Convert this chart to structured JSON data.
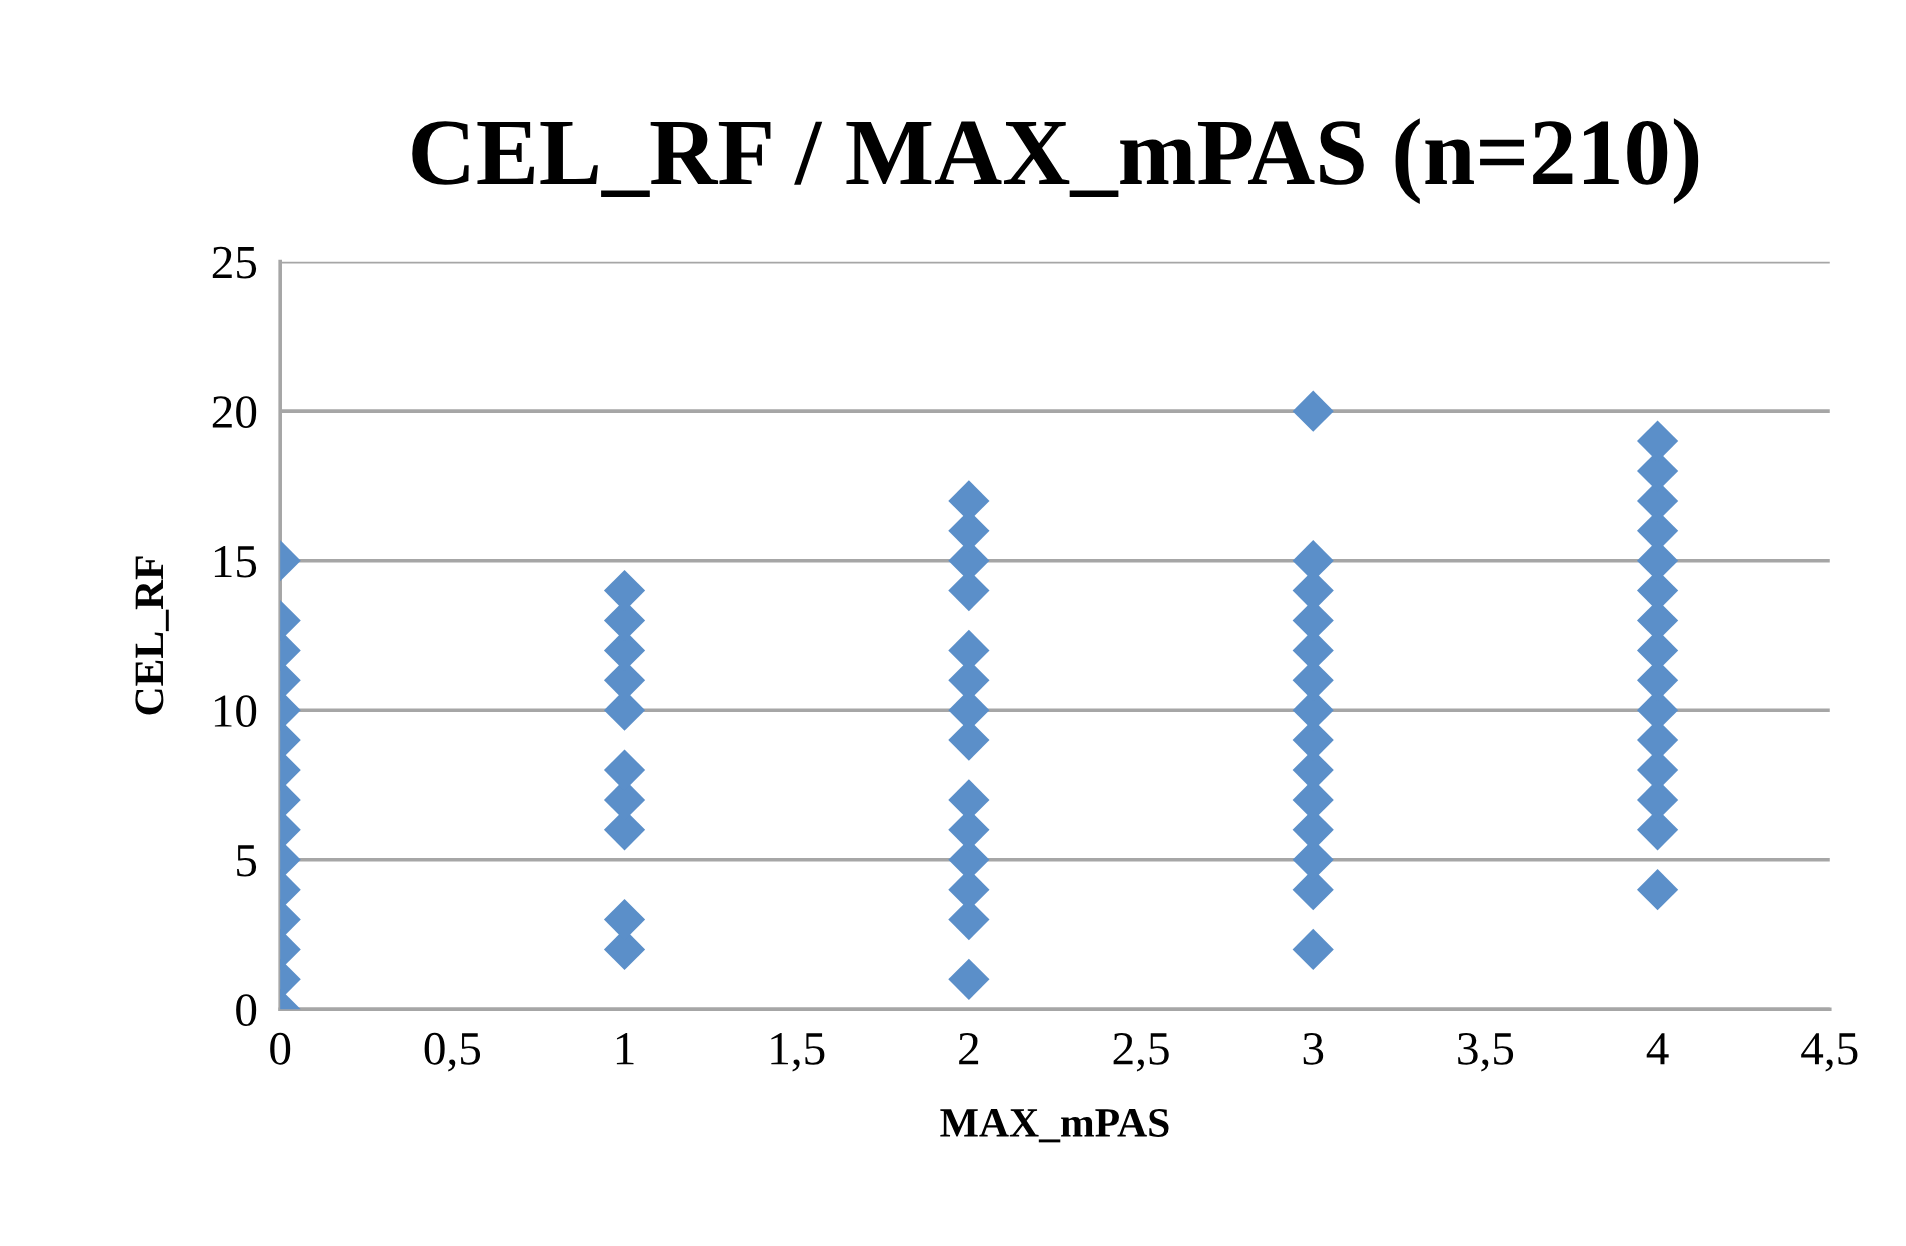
{
  "chart_data": {
    "type": "scatter",
    "title": "CEL_RF / MAX_mPAS (n=210)",
    "xlabel": "MAX_mPAS",
    "ylabel": "CEL_RF",
    "x": [
      0,
      0,
      0,
      0,
      0,
      0,
      0,
      0,
      0,
      0,
      0,
      0,
      0,
      0,
      0,
      1,
      1,
      1,
      1,
      1,
      1,
      1,
      1,
      1,
      1,
      2,
      2,
      2,
      2,
      2,
      2,
      2,
      2,
      2,
      2,
      2,
      2,
      2,
      2,
      3,
      3,
      3,
      3,
      3,
      3,
      3,
      3,
      3,
      3,
      3,
      3,
      3,
      3,
      4,
      4,
      4,
      4,
      4,
      4,
      4,
      4,
      4,
      4,
      4,
      4,
      4,
      4,
      4
    ],
    "values": [
      0,
      1,
      2,
      3,
      4,
      5,
      6,
      7,
      8,
      9,
      10,
      11,
      12,
      13,
      15,
      2,
      3,
      6,
      7,
      8,
      10,
      11,
      12,
      13,
      14,
      1,
      3,
      4,
      5,
      6,
      7,
      9,
      10,
      11,
      12,
      14,
      15,
      16,
      17,
      2,
      4,
      5,
      6,
      7,
      8,
      9,
      10,
      11,
      12,
      13,
      14,
      15,
      20,
      4,
      6,
      7,
      8,
      9,
      10,
      11,
      12,
      13,
      14,
      15,
      16,
      17,
      18,
      19
    ],
    "color": "#5b8fc9",
    "marker": "diamond",
    "xlim": [
      0,
      4.5
    ],
    "xticks": [
      0,
      {
        "value": 0.5,
        "label": "0,5"
      },
      1,
      {
        "value": 1.5,
        "label": "1,5"
      },
      2,
      {
        "value": 2.5,
        "label": "2,5"
      },
      3,
      {
        "value": 3.5,
        "label": "3,5"
      },
      4,
      {
        "value": 4.5,
        "label": "4,5"
      }
    ],
    "ylim": [
      0,
      25
    ],
    "yticks": [
      0,
      5,
      10,
      15,
      20,
      25
    ],
    "grid": "y"
  }
}
